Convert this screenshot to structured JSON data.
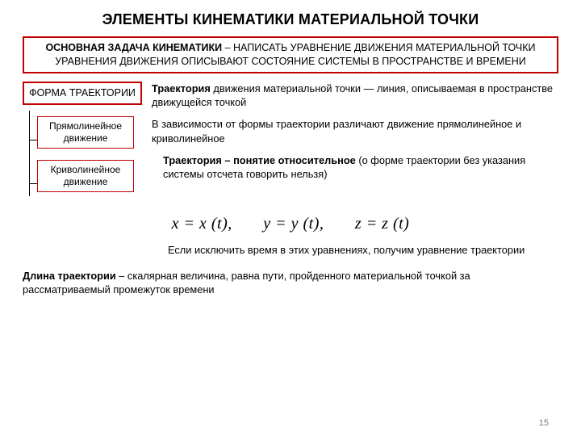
{
  "title": "ЭЛЕМЕНТЫ КИНЕМАТИКИ МАТЕРИАЛЬНОЙ ТОЧКИ",
  "task": {
    "line1_bold": "ОСНОВНАЯ ЗАДАЧА КИНЕМАТИКИ",
    "line1_rest": " – НАПИСАТЬ УРАВНЕНИЕ ДВИЖЕНИЯ МАТЕРИАЛЬНОЙ ТОЧКИ",
    "line2": "УРАВНЕНИЯ ДВИЖЕНИЯ ОПИСЫВАЮТ СОСТОЯНИЕ СИСТЕМЫ В ПРОСТРАНСТВЕ И ВРЕМЕНИ"
  },
  "left": {
    "form_label": "ФОРМА ТРАЕКТОРИИ",
    "sub1": "Прямолинейное движение",
    "sub2": "Криволинейное движение"
  },
  "right": {
    "p1_bold": "Траектория",
    "p1_rest": " движения материальной точки — линия, описываемая в пространстве движущейся точкой",
    "p2": "В зависимости от формы траектории различают движение прямолинейное и криволинейное",
    "p3_bold": "Траектория – понятие относительное",
    "p3_rest": " (о форме траектории без указания системы отсчета говорить нельзя)"
  },
  "equations": {
    "x": "x = x (t),",
    "y": "y = y (t),",
    "z": "z = z (t)"
  },
  "p4": "Если исключить время в этих уравнениях, получим уравнение траектории",
  "p5_bold": "Длина траектории",
  "p5_rest": " – скалярная величина, равна пути, пройденного материальной точкой за рассматриваемый промежуток времени",
  "page_number": "15",
  "colors": {
    "border": "#c00000",
    "text": "#000000",
    "bg": "#ffffff",
    "pagenum": "#7a7a7a"
  },
  "fonts": {
    "title_size": 18,
    "body_size": 12.8,
    "eq_size": 20
  }
}
